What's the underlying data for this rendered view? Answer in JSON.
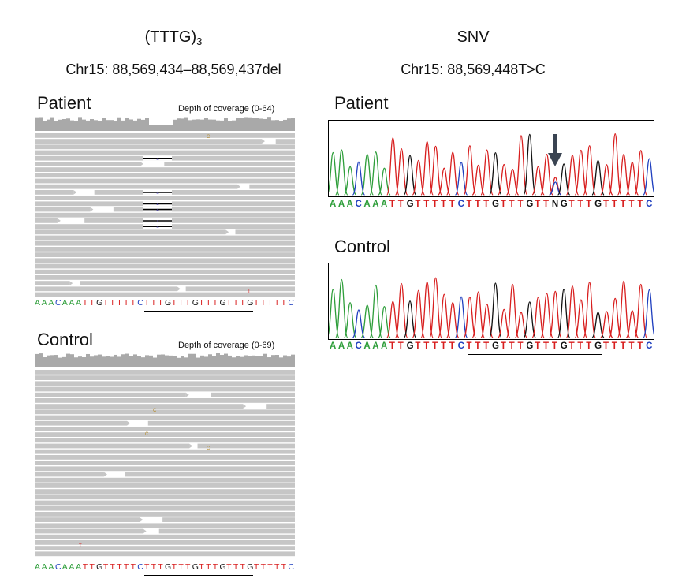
{
  "left": {
    "title_main": "(TTTG)",
    "title_sub": "3",
    "coordinate": "Chr15: 88,569,434–88,569,437del",
    "patient": {
      "label": "Patient",
      "depth_label": "Depth of coverage (0-64)",
      "sequence": "AAACAAATTGTTTTTCTTTGTTTGTTTGTTTGTTTTTC"
    },
    "control": {
      "label": "Control",
      "depth_label": "Depth of coverage (0-69)",
      "sequence": "AAACAAATTGTTTTTCTTTGTTTGTTTGTTTGTTTTTC"
    },
    "deletion_marker": "4",
    "mismatch_base_t": "T",
    "mismatch_base_c": "C"
  },
  "right": {
    "title": "SNV",
    "coordinate": "Chr15: 88,569,448T>C",
    "patient": {
      "label": "Patient",
      "sequence": "AAACAAATTGTTTTTCTTTGTTTGTTNGTTTGTTTTTC"
    },
    "control": {
      "label": "Control",
      "sequence": "AAACAAATTGTTTTTCTTTGTTTGTTTGTTTGTTTTTC"
    }
  },
  "colors": {
    "A": "#2e9e3a",
    "C": "#1f3fbf",
    "G": "#111111",
    "T": "#d81e1e",
    "N": "#111111",
    "read": "#c6c6c6",
    "coverage": "#a9a9a9",
    "arrow": "#3a4452"
  }
}
